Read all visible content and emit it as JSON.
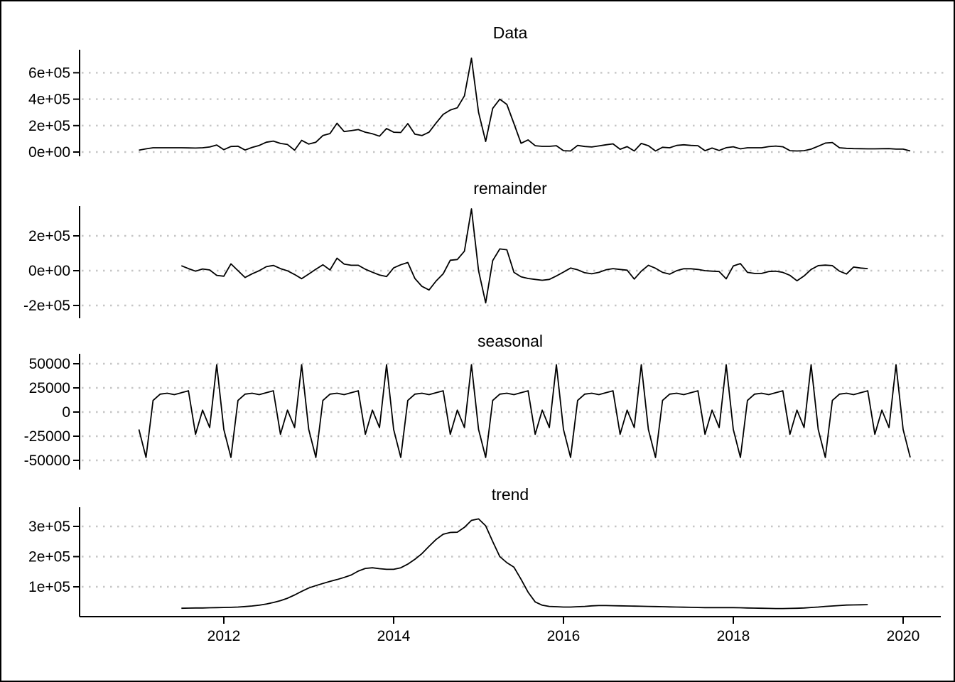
{
  "figure": {
    "background_color": "#ffffff",
    "border_color": "#000000",
    "series_line_color": "#000000",
    "grid_color": "#c6c6c6",
    "axis_color": "#000000",
    "text_color": "#000000"
  },
  "x_axis": {
    "tick_labels": [
      "2012",
      "2014",
      "2016",
      "2018",
      "2020"
    ],
    "tick_values": [
      2012,
      2014,
      2016,
      2018,
      2020
    ]
  },
  "chart_data": {
    "type": "line",
    "frequency": "monthly",
    "grid": "dotted-horizontal",
    "legend": "none",
    "panels": [
      {
        "title": "Data",
        "y_tick_labels": [
          "6e+05",
          "4e+05",
          "2e+05",
          "0e+00"
        ],
        "y_tick_values": [
          600000,
          400000,
          200000,
          0
        ],
        "x_start": 2011.0,
        "values": [
          14000,
          24000,
          32000,
          32000,
          32000,
          32000,
          32000,
          31000,
          30000,
          32000,
          38000,
          53000,
          18000,
          42000,
          44000,
          15000,
          35000,
          50000,
          74000,
          83000,
          65000,
          57000,
          14000,
          88000,
          60000,
          74000,
          125000,
          140000,
          218000,
          155000,
          162000,
          170000,
          150000,
          138000,
          120000,
          178000,
          150000,
          148000,
          215000,
          135000,
          125000,
          150000,
          220000,
          285000,
          318000,
          335000,
          425000,
          710000,
          300000,
          80000,
          330000,
          400000,
          360000,
          215000,
          66000,
          92000,
          48000,
          43000,
          43000,
          48000,
          10000,
          8000,
          50000,
          42000,
          38000,
          46000,
          55000,
          62000,
          21000,
          41000,
          8000,
          65000,
          48000,
          8000,
          36000,
          32000,
          50000,
          55000,
          50000,
          48000,
          10000,
          30000,
          12000,
          33000,
          40000,
          24000,
          32000,
          32000,
          32000,
          41000,
          45000,
          40000,
          10000,
          8000,
          10000,
          22000,
          44000,
          68000,
          72000,
          32000,
          28000,
          26000,
          25000,
          24000,
          24000,
          25000,
          26000,
          22000,
          22000,
          8000
        ]
      },
      {
        "title": "remainder",
        "y_tick_labels": [
          "2e+05",
          "0e+00",
          "-2e+05"
        ],
        "y_tick_values": [
          200000,
          0,
          -200000
        ],
        "x_start": 2011.5,
        "values": [
          28000,
          12000,
          -3000,
          10000,
          4000,
          -27000,
          -32000,
          39000,
          0,
          -39000,
          -18000,
          0,
          23000,
          30000,
          12000,
          -1000,
          -22000,
          -46000,
          -19000,
          8000,
          34000,
          4000,
          72000,
          38000,
          31000,
          31000,
          8000,
          -9000,
          -25000,
          -34000,
          16000,
          34000,
          47000,
          -45000,
          -90000,
          -111000,
          -59000,
          -18000,
          60000,
          64000,
          112000,
          355000,
          0,
          -185000,
          58000,
          125000,
          120000,
          -10000,
          -35000,
          -45000,
          -50000,
          -55000,
          -50000,
          -30000,
          -8000,
          15000,
          5000,
          -12000,
          -18000,
          -10000,
          5000,
          12000,
          7000,
          3000,
          -48000,
          -3000,
          31000,
          14000,
          -10000,
          -20000,
          0,
          11000,
          11000,
          7000,
          0,
          -3000,
          -5000,
          -47000,
          27000,
          41000,
          -10000,
          -16000,
          -16000,
          -5000,
          -3000,
          -10000,
          -27000,
          -58000,
          -30000,
          7000,
          29000,
          32000,
          29000,
          -3000,
          -19000,
          21000,
          15000,
          12000
        ]
      },
      {
        "title": "seasonal",
        "y_tick_labels": [
          "50000",
          "25000",
          "0",
          "-25000",
          "-50000"
        ],
        "y_tick_values": [
          50000,
          25000,
          0,
          -25000,
          -50000
        ],
        "x_start": 2011.0,
        "n_points": 110,
        "monthly_pattern_jan_to_dec": [
          -18000,
          -47000,
          12000,
          18500,
          19500,
          18000,
          20000,
          22000,
          -23000,
          2000,
          -16000,
          49000
        ]
      },
      {
        "title": "trend",
        "y_tick_labels": [
          "3e+05",
          "2e+05",
          "1e+05"
        ],
        "y_tick_values": [
          300000,
          200000,
          100000
        ],
        "x_start": 2011.5,
        "values": [
          29000,
          29500,
          30000,
          30000,
          30500,
          31000,
          31500,
          32000,
          33000,
          34500,
          36500,
          39000,
          43000,
          48000,
          54000,
          62000,
          73000,
          85000,
          96000,
          104000,
          111000,
          118000,
          124000,
          131000,
          139000,
          152000,
          161000,
          163000,
          160000,
          158000,
          158000,
          163000,
          175000,
          191000,
          210000,
          234000,
          257000,
          274000,
          280000,
          281000,
          297000,
          320000,
          325000,
          302000,
          250000,
          200000,
          180000,
          165000,
          125000,
          82000,
          50000,
          39000,
          35000,
          34000,
          33000,
          33000,
          34000,
          35000,
          37000,
          38000,
          38000,
          37500,
          37000,
          36500,
          36000,
          35500,
          35000,
          34500,
          34000,
          33500,
          33000,
          32500,
          32000,
          31500,
          31000,
          31000,
          31000,
          31000,
          31000,
          30500,
          30000,
          29500,
          29000,
          28500,
          28000,
          28000,
          28500,
          29000,
          30000,
          31500,
          33000,
          35000,
          36500,
          38000,
          39500,
          40000,
          40500,
          41000
        ]
      }
    ]
  }
}
